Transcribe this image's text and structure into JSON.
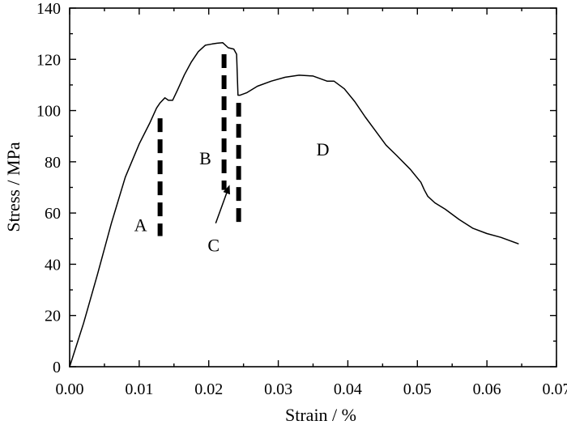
{
  "chart_data": {
    "type": "line",
    "title": "",
    "xlabel": "Strain / %",
    "ylabel": "Stress / MPa",
    "xlim": [
      0.0,
      0.07
    ],
    "ylim": [
      0,
      140
    ],
    "xticks": [
      0.0,
      0.01,
      0.02,
      0.03,
      0.04,
      0.05,
      0.06,
      0.07
    ],
    "xtick_labels": [
      "0.00",
      "0.01",
      "0.02",
      "0.03",
      "0.04",
      "0.05",
      "0.06",
      "0.07"
    ],
    "yticks": [
      0,
      20,
      40,
      60,
      80,
      100,
      120,
      140
    ],
    "ytick_labels": [
      "0",
      "20",
      "40",
      "60",
      "80",
      "100",
      "120",
      "140"
    ],
    "grid": false,
    "legend": "none",
    "series": [
      {
        "x": [
          0.0,
          0.002,
          0.004,
          0.006,
          0.008,
          0.01,
          0.0115,
          0.0125,
          0.013,
          0.0137,
          0.0142,
          0.0148,
          0.0155,
          0.0165,
          0.0175,
          0.0185,
          0.0195,
          0.0205,
          0.0212,
          0.022,
          0.0228,
          0.0236,
          0.024,
          0.0242,
          0.0245,
          0.0255,
          0.027,
          0.029,
          0.031,
          0.033,
          0.035,
          0.037,
          0.038,
          0.0395,
          0.041,
          0.0425,
          0.044,
          0.0455,
          0.047,
          0.049,
          0.0505,
          0.051,
          0.0515,
          0.0525,
          0.054,
          0.056,
          0.058,
          0.06,
          0.062,
          0.0645
        ],
        "y": [
          0,
          17,
          36,
          56,
          74,
          87,
          95,
          101,
          103,
          105,
          104,
          104,
          108,
          114,
          119,
          123,
          125.5,
          126,
          126.3,
          126.5,
          124.5,
          124,
          122,
          106,
          106,
          107,
          109.5,
          111.5,
          113,
          113.8,
          113.5,
          111.5,
          111.5,
          108.5,
          103.5,
          97.5,
          92,
          86.5,
          82.5,
          77,
          72,
          69,
          66.5,
          64,
          61.5,
          57.5,
          54,
          52,
          50.5,
          48
        ]
      }
    ],
    "dividers": [
      {
        "x": 0.013,
        "y_top": 97,
        "y_bottom": 51
      },
      {
        "x": 0.0222,
        "y_top": 122,
        "y_bottom": 69
      },
      {
        "x": 0.0243,
        "y_top": 103,
        "y_bottom": 55
      }
    ],
    "annotations": [
      {
        "text": "A",
        "x": 0.0102,
        "y": 55.5
      },
      {
        "text": "B",
        "x": 0.0195,
        "y": 81.5
      },
      {
        "text": "C",
        "x": 0.0207,
        "y": 47.5
      },
      {
        "text": "D",
        "x": 0.0364,
        "y": 85
      }
    ],
    "arrow": {
      "from": [
        0.021,
        56
      ],
      "to": [
        0.023,
        71
      ]
    }
  }
}
